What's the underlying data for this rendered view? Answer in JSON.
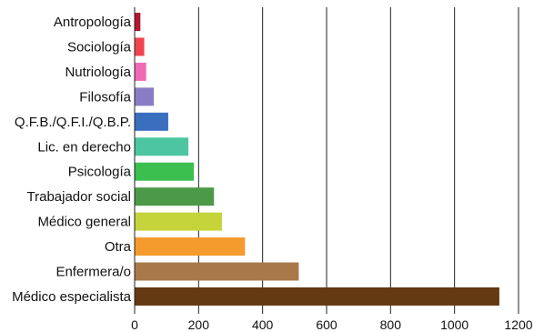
{
  "chart_data": {
    "type": "bar",
    "orientation": "horizontal",
    "title": "",
    "xlabel": "",
    "ylabel": "",
    "xlim": [
      0,
      1200
    ],
    "x_ticks": [
      "0",
      "200",
      "400",
      "600",
      "800",
      "1000",
      "1200"
    ],
    "grid": "vertical",
    "legend": "none",
    "categories": [
      "Antropología",
      "Sociología",
      "Nutriología",
      "Filosofía",
      "Q.F.B./Q.F.I./Q.B.P.",
      "Lic. en derecho",
      "Psicología",
      "Trabajador social",
      "Médico general",
      "Otra",
      "Enfermera/o",
      "Médico especialista"
    ],
    "values": [
      18,
      30,
      36,
      60,
      105,
      168,
      185,
      248,
      273,
      345,
      513,
      1140
    ],
    "colors": [
      "#b5162f",
      "#f0444e",
      "#f06ab4",
      "#8a7cc4",
      "#3a6fc0",
      "#4cc5a1",
      "#3bbf4e",
      "#4c9a48",
      "#c5d43a",
      "#f59a2c",
      "#a8784a",
      "#643a10"
    ]
  }
}
